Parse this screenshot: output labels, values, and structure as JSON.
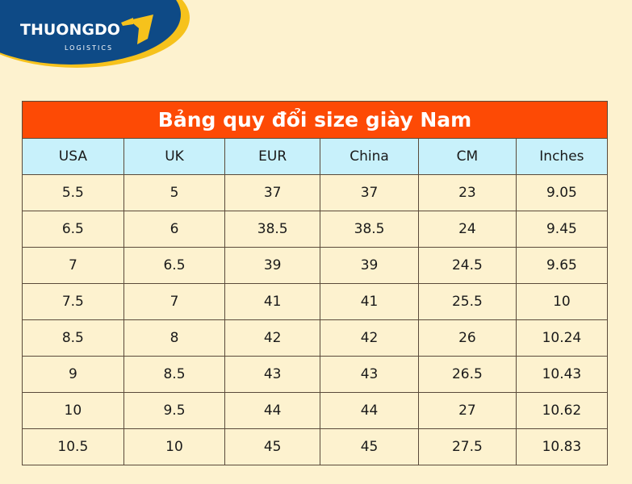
{
  "logo": {
    "text": "THUONGDO",
    "subtext": "LOGISTICS",
    "colors": {
      "blue": "#0e4a86",
      "gold": "#f6c21c"
    }
  },
  "table": {
    "title": "Bảng quy đổi size giày Nam",
    "columns": [
      "USA",
      "UK",
      "EUR",
      "China",
      "CM",
      "Inches"
    ],
    "rows": [
      [
        "5.5",
        "5",
        "37",
        "37",
        "23",
        "9.05"
      ],
      [
        "6.5",
        "6",
        "38.5",
        "38.5",
        "24",
        "9.45"
      ],
      [
        "7",
        "6.5",
        "39",
        "39",
        "24.5",
        "9.65"
      ],
      [
        "7.5",
        "7",
        "41",
        "41",
        "25.5",
        "10"
      ],
      [
        "8.5",
        "8",
        "42",
        "42",
        "26",
        "10.24"
      ],
      [
        "9",
        "8.5",
        "43",
        "43",
        "26.5",
        "10.43"
      ],
      [
        "10",
        "9.5",
        "44",
        "44",
        "27",
        "10.62"
      ],
      [
        "10.5",
        "10",
        "45",
        "45",
        "27.5",
        "10.83"
      ]
    ]
  }
}
